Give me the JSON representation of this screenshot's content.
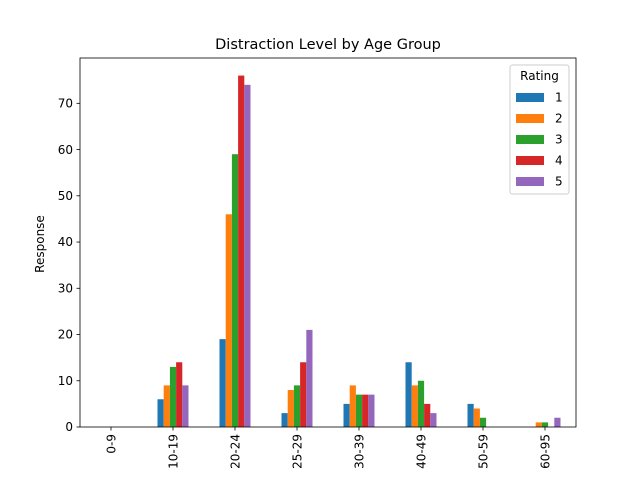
{
  "chart_data": {
    "type": "bar",
    "title": "Distraction Level by Age Group",
    "xlabel": "",
    "ylabel": "Response",
    "categories": [
      "0-9",
      "10-19",
      "20-24",
      "25-29",
      "30-39",
      "40-49",
      "50-59",
      "60-95"
    ],
    "ylim": [
      0,
      79.8
    ],
    "yticks": [
      0,
      10,
      20,
      30,
      40,
      50,
      60,
      70
    ],
    "grid": false,
    "legend": {
      "title": "Rating",
      "placement": "top-right"
    },
    "series": [
      {
        "name": "1",
        "color": "#1f77b4",
        "values": [
          0,
          6,
          19,
          3,
          5,
          14,
          5,
          0
        ]
      },
      {
        "name": "2",
        "color": "#ff7f0e",
        "values": [
          0,
          9,
          46,
          8,
          9,
          9,
          4,
          1
        ]
      },
      {
        "name": "3",
        "color": "#2ca02c",
        "values": [
          0,
          13,
          59,
          9,
          7,
          10,
          2,
          1
        ]
      },
      {
        "name": "4",
        "color": "#d62728",
        "values": [
          0,
          14,
          76,
          14,
          7,
          5,
          0,
          0
        ]
      },
      {
        "name": "5",
        "color": "#9467bd",
        "values": [
          0,
          9,
          74,
          21,
          7,
          3,
          0,
          2
        ]
      }
    ]
  }
}
